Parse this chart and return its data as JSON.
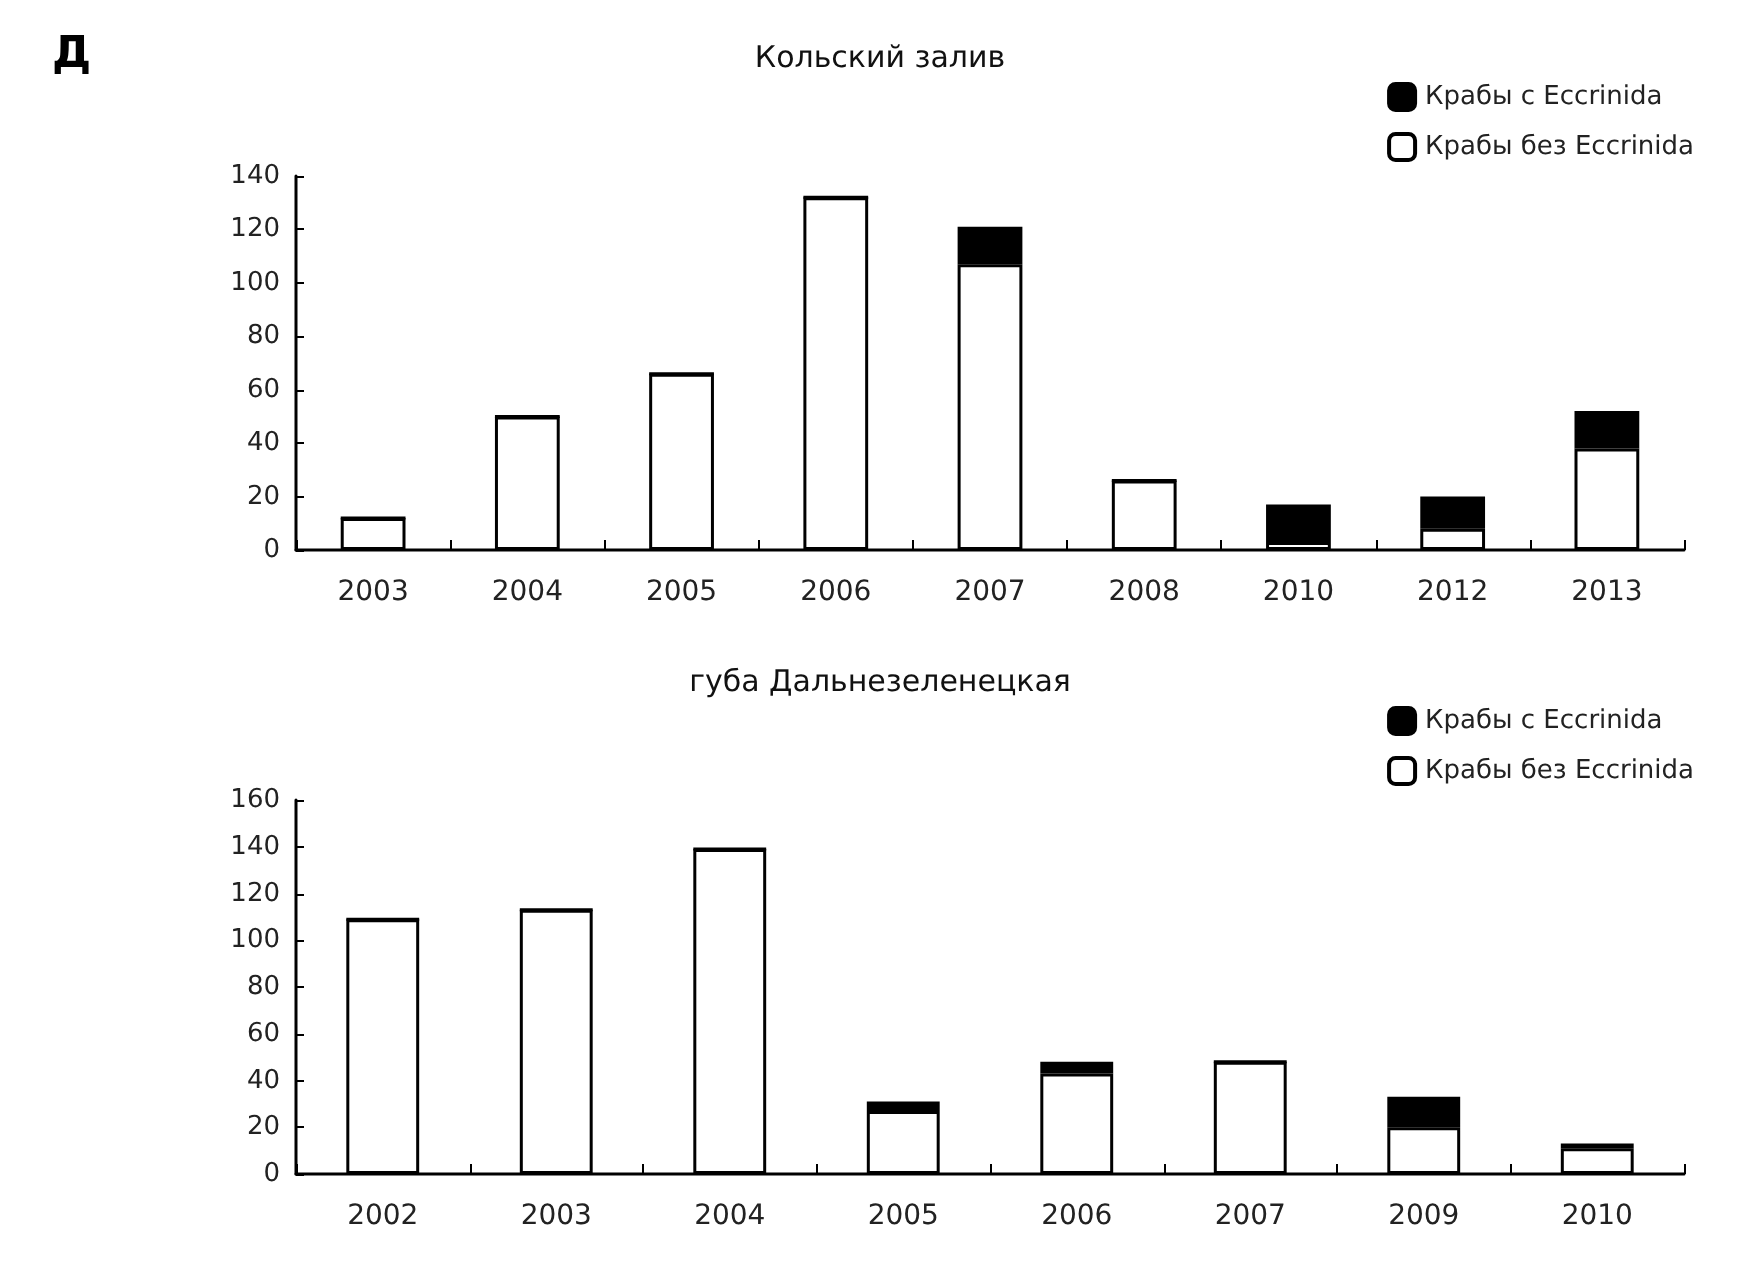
{
  "chart_data": [
    {
      "type": "bar",
      "title": "Кольский залив",
      "annotations": [
        "Д"
      ],
      "stacked": true,
      "legend": "top right",
      "grid": false,
      "categories": [
        "2003",
        "2004",
        "2005",
        "2006",
        "2007",
        "2008",
        "2010",
        "2012",
        "2013"
      ],
      "series": [
        {
          "name": "Крабы без Eccrinida",
          "color": "#ffffff",
          "values": [
            12,
            50,
            66,
            132,
            107,
            26,
            3,
            8,
            38
          ]
        },
        {
          "name": "Крабы с Eccrinida",
          "color": "#000000",
          "values": [
            0,
            0,
            0,
            0,
            14,
            0,
            14,
            12,
            14
          ]
        }
      ],
      "ylim": [
        0,
        140
      ],
      "yticks": [
        0,
        20,
        40,
        60,
        80,
        100,
        120,
        140
      ]
    },
    {
      "type": "bar",
      "title": "губа Дальнезеленецкая",
      "stacked": true,
      "legend": "top right",
      "grid": false,
      "categories": [
        "2002",
        "2003",
        "2004",
        "2005",
        "2006",
        "2007",
        "2009",
        "2010"
      ],
      "series": [
        {
          "name": "Крабы без Eccrinida",
          "color": "#ffffff",
          "values": [
            109,
            113,
            139,
            27,
            43,
            48,
            20,
            11
          ]
        },
        {
          "name": "Крабы с Eccrinida",
          "color": "#000000",
          "values": [
            0,
            0,
            0,
            4,
            5,
            0,
            13,
            2
          ]
        }
      ],
      "ylim": [
        0,
        160
      ],
      "yticks": [
        0,
        20,
        40,
        60,
        80,
        100,
        120,
        140,
        160
      ]
    }
  ]
}
